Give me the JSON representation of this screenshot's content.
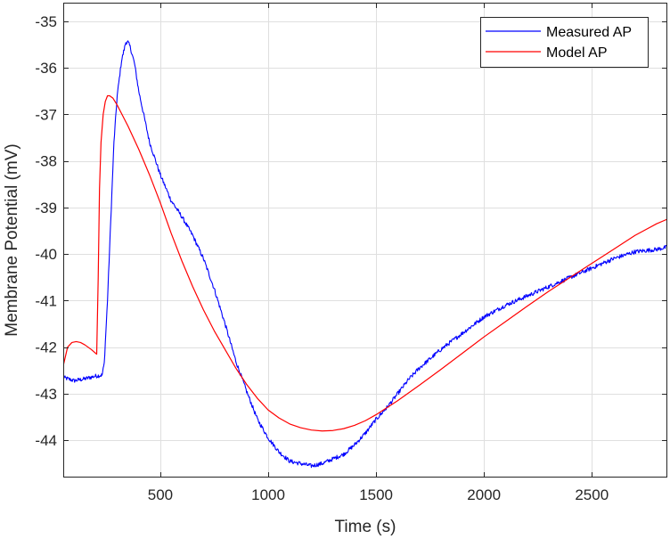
{
  "chart_data": {
    "type": "line",
    "title": "",
    "xlabel": "Time (s)",
    "ylabel": "Membrane Potential (mV)",
    "xlim": [
      50,
      2850
    ],
    "ylim": [
      -44.8,
      -34.6
    ],
    "xticks": [
      500,
      1000,
      1500,
      2000,
      2500
    ],
    "yticks": [
      -44,
      -43,
      -42,
      -41,
      -40,
      -39,
      -38,
      -37,
      -36,
      -35
    ],
    "grid": true,
    "legend_position": "top-right",
    "series": [
      {
        "name": "Measured AP",
        "color": "#0000ff",
        "x": [
          50,
          100,
          150,
          200,
          230,
          240,
          255,
          270,
          285,
          300,
          320,
          340,
          350,
          360,
          380,
          400,
          450,
          500,
          550,
          600,
          650,
          700,
          750,
          800,
          850,
          900,
          950,
          1000,
          1050,
          1100,
          1150,
          1200,
          1250,
          1300,
          1350,
          1400,
          1450,
          1500,
          1550,
          1600,
          1650,
          1700,
          1800,
          1900,
          2000,
          2100,
          2200,
          2300,
          2400,
          2500,
          2600,
          2700,
          2800,
          2850
        ],
        "y": [
          -42.65,
          -42.72,
          -42.68,
          -42.62,
          -42.6,
          -42.35,
          -41.0,
          -39.3,
          -37.6,
          -36.6,
          -35.85,
          -35.45,
          -35.45,
          -35.55,
          -35.9,
          -36.5,
          -37.6,
          -38.3,
          -38.85,
          -39.2,
          -39.6,
          -40.1,
          -40.75,
          -41.5,
          -42.3,
          -42.95,
          -43.55,
          -43.95,
          -44.25,
          -44.45,
          -44.5,
          -44.55,
          -44.5,
          -44.4,
          -44.3,
          -44.1,
          -43.85,
          -43.55,
          -43.3,
          -43.0,
          -42.7,
          -42.45,
          -42.05,
          -41.7,
          -41.35,
          -41.1,
          -40.9,
          -40.7,
          -40.5,
          -40.3,
          -40.1,
          -39.95,
          -39.9,
          -39.85
        ]
      },
      {
        "name": "Model AP",
        "color": "#ff0000",
        "x": [
          50,
          70,
          90,
          110,
          130,
          150,
          180,
          205,
          212,
          218,
          225,
          235,
          245,
          255,
          265,
          280,
          300,
          350,
          400,
          450,
          500,
          550,
          600,
          650,
          700,
          750,
          800,
          850,
          900,
          950,
          1000,
          1050,
          1100,
          1150,
          1200,
          1250,
          1300,
          1350,
          1400,
          1450,
          1500,
          1600,
          1700,
          1800,
          1900,
          2000,
          2100,
          2200,
          2300,
          2400,
          2500,
          2600,
          2700,
          2800,
          2850
        ],
        "y": [
          -42.4,
          -42.0,
          -41.9,
          -41.88,
          -41.9,
          -41.95,
          -42.05,
          -42.15,
          -40.5,
          -38.6,
          -37.6,
          -37.0,
          -36.72,
          -36.6,
          -36.6,
          -36.65,
          -36.8,
          -37.25,
          -37.75,
          -38.3,
          -38.9,
          -39.55,
          -40.15,
          -40.7,
          -41.2,
          -41.65,
          -42.05,
          -42.45,
          -42.8,
          -43.1,
          -43.35,
          -43.52,
          -43.65,
          -43.73,
          -43.78,
          -43.8,
          -43.79,
          -43.75,
          -43.68,
          -43.58,
          -43.45,
          -43.15,
          -42.82,
          -42.48,
          -42.13,
          -41.78,
          -41.45,
          -41.12,
          -40.8,
          -40.5,
          -40.2,
          -39.9,
          -39.6,
          -39.35,
          -39.25
        ]
      }
    ]
  }
}
